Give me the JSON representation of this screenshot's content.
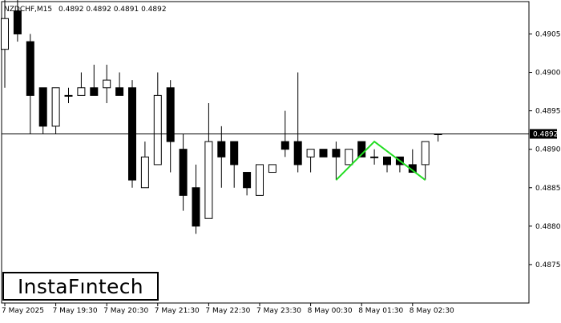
{
  "header": {
    "symbol": "NZDCHF,M15",
    "ohlc": "0.4892 0.4892 0.4891 0.4892"
  },
  "logo": {
    "text": "InstaFıntech"
  },
  "chart_data": {
    "type": "candlestick",
    "symbol": "NZDCHF",
    "timeframe": "M15",
    "current_price": 0.4892,
    "current_price_label": "0.4892",
    "ylim": [
      0.487,
      0.4909
    ],
    "y_ticks": [
      "0.4875",
      "0.4880",
      "0.4885",
      "0.4890",
      "0.4895",
      "0.4900",
      "0.4905"
    ],
    "x_labels": [
      "7 May 2025",
      "7 May 19:30",
      "7 May 20:30",
      "7 May 21:30",
      "7 May 22:30",
      "7 May 23:30",
      "8 May 00:30",
      "8 May 01:30",
      "8 May 02:30"
    ],
    "candles": [
      {
        "o": 0.4903,
        "h": 0.491,
        "l": 0.4898,
        "c": 0.4907
      },
      {
        "o": 0.4908,
        "h": 0.4911,
        "l": 0.4904,
        "c": 0.4905
      },
      {
        "o": 0.4904,
        "h": 0.4905,
        "l": 0.4892,
        "c": 0.4897
      },
      {
        "o": 0.4898,
        "h": 0.4898,
        "l": 0.4892,
        "c": 0.4893
      },
      {
        "o": 0.4893,
        "h": 0.4898,
        "l": 0.4892,
        "c": 0.4898
      },
      {
        "o": 0.4897,
        "h": 0.4898,
        "l": 0.4896,
        "c": 0.4897
      },
      {
        "o": 0.4897,
        "h": 0.49,
        "l": 0.4897,
        "c": 0.4898
      },
      {
        "o": 0.4898,
        "h": 0.4901,
        "l": 0.4897,
        "c": 0.4897
      },
      {
        "o": 0.4898,
        "h": 0.4901,
        "l": 0.4896,
        "c": 0.4899
      },
      {
        "o": 0.4898,
        "h": 0.49,
        "l": 0.4897,
        "c": 0.4897
      },
      {
        "o": 0.4898,
        "h": 0.4899,
        "l": 0.4885,
        "c": 0.4886
      },
      {
        "o": 0.4885,
        "h": 0.4891,
        "l": 0.4885,
        "c": 0.4889
      },
      {
        "o": 0.4888,
        "h": 0.49,
        "l": 0.4888,
        "c": 0.4897
      },
      {
        "o": 0.4898,
        "h": 0.4899,
        "l": 0.4887,
        "c": 0.4891
      },
      {
        "o": 0.489,
        "h": 0.4892,
        "l": 0.4882,
        "c": 0.4884
      },
      {
        "o": 0.4885,
        "h": 0.4888,
        "l": 0.4879,
        "c": 0.488
      },
      {
        "o": 0.4881,
        "h": 0.4896,
        "l": 0.4881,
        "c": 0.4891
      },
      {
        "o": 0.4891,
        "h": 0.4893,
        "l": 0.4885,
        "c": 0.4889
      },
      {
        "o": 0.4891,
        "h": 0.4891,
        "l": 0.4885,
        "c": 0.4888
      },
      {
        "o": 0.4887,
        "h": 0.4887,
        "l": 0.4884,
        "c": 0.4885
      },
      {
        "o": 0.4884,
        "h": 0.4888,
        "l": 0.4884,
        "c": 0.4888
      },
      {
        "o": 0.4887,
        "h": 0.4888,
        "l": 0.4887,
        "c": 0.4888
      },
      {
        "o": 0.4891,
        "h": 0.4895,
        "l": 0.4889,
        "c": 0.489
      },
      {
        "o": 0.4891,
        "h": 0.49,
        "l": 0.4887,
        "c": 0.4888
      },
      {
        "o": 0.4889,
        "h": 0.489,
        "l": 0.4887,
        "c": 0.489
      },
      {
        "o": 0.489,
        "h": 0.489,
        "l": 0.4889,
        "c": 0.4889
      },
      {
        "o": 0.489,
        "h": 0.4891,
        "l": 0.4886,
        "c": 0.4889
      },
      {
        "o": 0.4888,
        "h": 0.489,
        "l": 0.4888,
        "c": 0.489
      },
      {
        "o": 0.4891,
        "h": 0.4891,
        "l": 0.4889,
        "c": 0.4889
      },
      {
        "o": 0.4889,
        "h": 0.489,
        "l": 0.4888,
        "c": 0.4889
      },
      {
        "o": 0.4889,
        "h": 0.4889,
        "l": 0.4887,
        "c": 0.4888
      },
      {
        "o": 0.4889,
        "h": 0.4889,
        "l": 0.4887,
        "c": 0.4888
      },
      {
        "o": 0.4888,
        "h": 0.489,
        "l": 0.4887,
        "c": 0.4887
      },
      {
        "o": 0.4888,
        "h": 0.4891,
        "l": 0.4886,
        "c": 0.4891
      },
      {
        "o": 0.4892,
        "h": 0.4892,
        "l": 0.4891,
        "c": 0.4892
      }
    ],
    "pattern_line": {
      "color": "#22dd22",
      "points": [
        {
          "candle": 26,
          "price": 0.4886
        },
        {
          "candle": 29,
          "price": 0.4891
        },
        {
          "candle": 33,
          "price": 0.4886
        }
      ]
    },
    "colors": {
      "bull_body": "#ffffff",
      "bear_body": "#000000",
      "outline": "#000000",
      "price_line": "#000000",
      "pattern": "#22dd22"
    }
  }
}
